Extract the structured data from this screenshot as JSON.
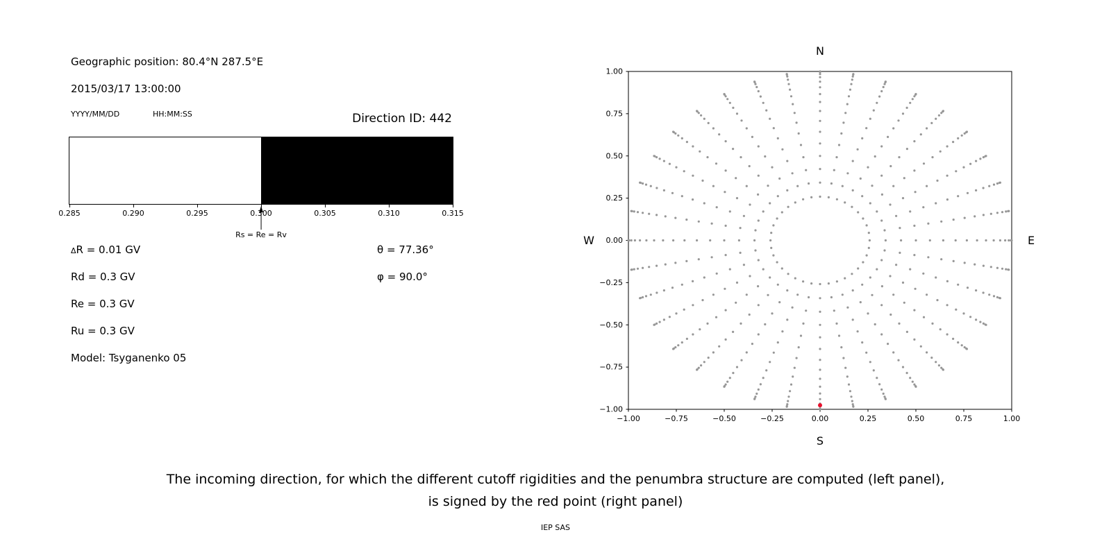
{
  "header": {
    "geo_position": "Geographic position: 80.4°N 287.5°E",
    "datetime": "2015/03/17 13:00:00",
    "date_format": "YYYY/MM/DD",
    "time_format": "HH:MM:SS",
    "direction_id": "Direction ID: 442"
  },
  "params": {
    "delta_symbol": "Δ",
    "delta_rest": "R = 0.01 GV",
    "rd": "Rd = 0.3 GV",
    "re": "Re = 0.3 GV",
    "ru": "Ru = 0.3 GV",
    "model": "Model: Tsyganenko 05",
    "theta": "θ = 77.36°",
    "phi": "φ = 90.0°"
  },
  "caption": {
    "line1": "The incoming direction, for which the different cutoff rigidities and the penumbra structure are computed (left panel),",
    "line2": "is signed by the red point (right panel)",
    "credit": "IEP SAS"
  },
  "chart_data": [
    {
      "type": "bar",
      "name": "penumbra-structure-strip",
      "xlim": [
        0.285,
        0.315
      ],
      "xticks": {
        "values": [
          0.285,
          0.29,
          0.295,
          0.3,
          0.305,
          0.31,
          0.315
        ],
        "labels": [
          "0.285",
          "0.290",
          "0.295",
          "0.300",
          "0.305",
          "0.310",
          "0.315"
        ]
      },
      "regions": [
        {
          "from": 0.285,
          "to": 0.3,
          "color": "#ffffff"
        },
        {
          "from": 0.3,
          "to": 0.315,
          "color": "#000000"
        }
      ],
      "annotation": {
        "x": 0.3,
        "label": "Rs = Re = Rv"
      }
    },
    {
      "type": "scatter",
      "name": "incoming-directions-map",
      "xlim": [
        -1.0,
        1.0
      ],
      "ylim": [
        -1.0,
        1.0
      ],
      "xticks": {
        "values": [
          -1.0,
          -0.75,
          -0.5,
          -0.25,
          0.0,
          0.25,
          0.5,
          0.75,
          1.0
        ],
        "labels": [
          "−1.00",
          "−0.75",
          "−0.50",
          "−0.25",
          "0.00",
          "0.25",
          "0.50",
          "0.75",
          "1.00"
        ]
      },
      "yticks": {
        "values": [
          -1.0,
          -0.75,
          -0.5,
          -0.25,
          0.0,
          0.25,
          0.5,
          0.75,
          1.0
        ],
        "labels": [
          "−1.00",
          "−0.75",
          "−0.50",
          "−0.25",
          "0.00",
          "0.25",
          "0.50",
          "0.75",
          "1.00"
        ]
      },
      "compass": {
        "top": "N",
        "bottom": "S",
        "left": "W",
        "right": "E"
      },
      "dot_color": "#979797",
      "directions_grid": {
        "azimuth_deg": {
          "start": 0,
          "stop": 350,
          "step": 10
        },
        "zenith_deg": {
          "start": 15,
          "stop": 90,
          "step": 5
        },
        "radius": "sin(zenith)"
      },
      "selected_direction": {
        "x": 0.0,
        "y": -0.976,
        "color": "#e8112d",
        "theta_deg": 77.36,
        "phi_deg": 90.0
      }
    }
  ]
}
